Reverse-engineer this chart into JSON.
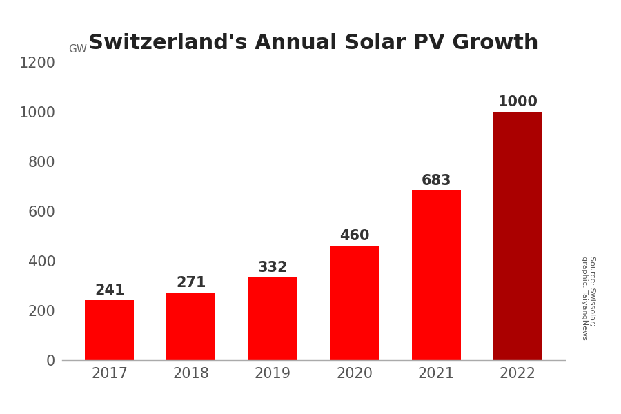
{
  "title": "Switzerland's Annual Solar PV Growth",
  "unit_label": "GW",
  "categories": [
    "2017",
    "2018",
    "2019",
    "2020",
    "2021",
    "2022"
  ],
  "values": [
    241,
    271,
    332,
    460,
    683,
    1000
  ],
  "bar_colors": [
    "#ff0000",
    "#ff0000",
    "#ff0000",
    "#ff0000",
    "#ff0000",
    "#aa0000"
  ],
  "ylim": [
    0,
    1200
  ],
  "yticks": [
    0,
    200,
    400,
    600,
    800,
    1000,
    1200
  ],
  "value_label_fontsize": 15,
  "title_fontsize": 22,
  "tick_fontsize": 15,
  "unit_fontsize": 11,
  "source_text": "Source: Swissolar;\ngraphic: TaiyangNews",
  "background_color": "#ffffff",
  "value_label_color": "#333333",
  "axis_label_color": "#555555",
  "source_fontsize": 8
}
